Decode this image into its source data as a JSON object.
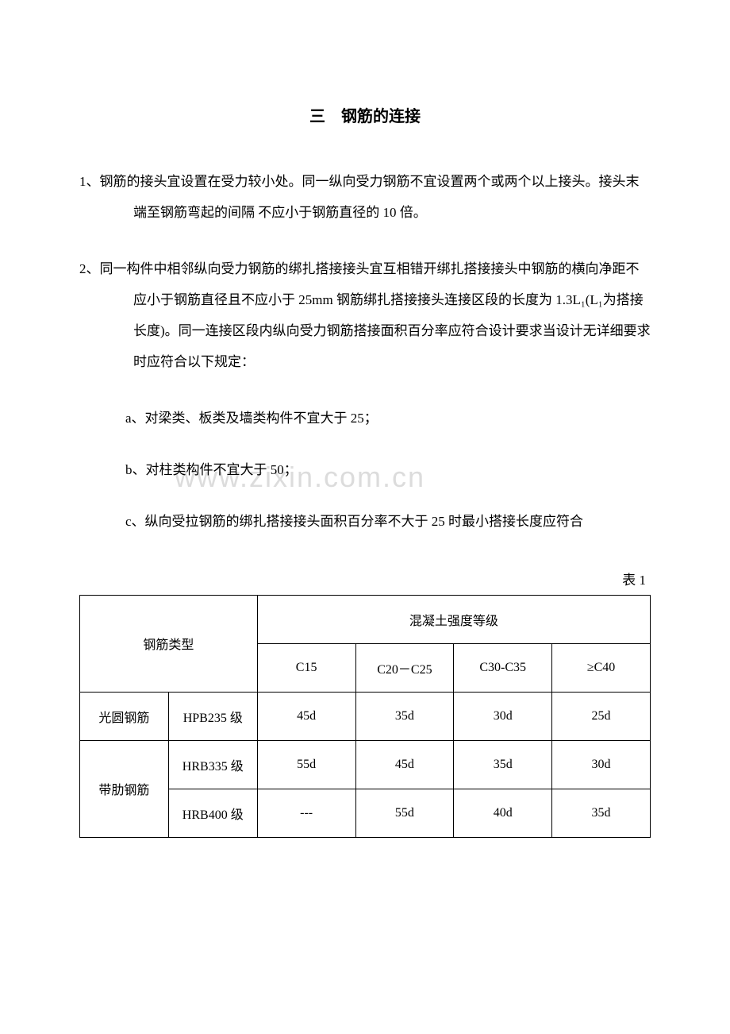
{
  "title": "三　钢筋的连接",
  "items": {
    "item1": "1、钢筋的接头宜设置在受力较小处。同一纵向受力钢筋不宜设置两个或两个以上接头。接头末端至钢筋弯起的间隔 不应小于钢筋直径的 10 倍。",
    "item2": "2、同一构件中相邻纵向受力钢筋的绑扎搭接接头宜互相错开绑扎搭接接头中钢筋的横向净距不应小于钢筋直径且不应小于 25mm 钢筋绑扎搭接接头连接区段的长度为 1.3L₁(L₁为搭接长度)。同一连接区段内纵向受力钢筋搭接面积百分率应符合设计要求当设计无详细要求时应符合以下规定："
  },
  "subItems": {
    "a": "a、对梁类、板类及墙类构件不宜大于 25；",
    "b": "b、对柱类构件不宜大于 50；",
    "c": "c、纵向受拉钢筋的绑扎搭接接头面积百分率不大于 25 时最小搭接长度应符合"
  },
  "tableCaption": "表 1",
  "watermark": "www.zixin.com.cn",
  "table": {
    "headers": {
      "type": "钢筋类型",
      "concrete": "混凝土强度等级",
      "c15": "C15",
      "c20": "C20－C25",
      "c30": "C30-C35",
      "c40": "≥C40"
    },
    "rows": [
      {
        "type": "光圆钢筋",
        "grade": "HPB235 级",
        "c15": "45d",
        "c20": "35d",
        "c30": "30d",
        "c40": "25d"
      },
      {
        "type": "带肋钢筋",
        "grade": "HRB335 级",
        "c15": "55d",
        "c20": "45d",
        "c30": "35d",
        "c40": "30d"
      },
      {
        "type": "",
        "grade": "HRB400 级",
        "c15": "---",
        "c20": "55d",
        "c30": "40d",
        "c40": "35d"
      }
    ]
  }
}
